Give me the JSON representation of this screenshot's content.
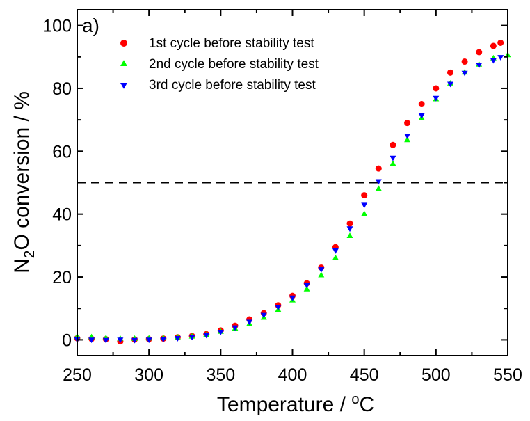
{
  "chart_data": {
    "type": "scatter",
    "panel_label": "a)",
    "xlabel": "Temperature / °C",
    "ylabel": "N2O conversion / %",
    "xlim": [
      250,
      550
    ],
    "ylim": [
      -5,
      105
    ],
    "x_ticks": [
      250,
      300,
      350,
      400,
      450,
      500,
      550
    ],
    "y_ticks": [
      0,
      20,
      40,
      60,
      80,
      100
    ],
    "grid": false,
    "legend_position": "top-left",
    "reference_line": {
      "y": 50,
      "style": "dashed"
    },
    "series": [
      {
        "name": "1st cycle before stability test",
        "color": "#ff0000",
        "marker": "circle",
        "x": [
          250,
          260,
          270,
          280,
          290,
          300,
          310,
          320,
          330,
          340,
          350,
          360,
          370,
          380,
          390,
          400,
          410,
          420,
          430,
          440,
          450,
          460,
          470,
          480,
          490,
          500,
          510,
          520,
          530,
          540,
          545
        ],
        "y": [
          0.5,
          0.3,
          0.2,
          -0.5,
          0.1,
          0.2,
          0.4,
          0.8,
          1.2,
          1.8,
          3.0,
          4.5,
          6.5,
          8.5,
          11.0,
          14.0,
          18.0,
          23.0,
          29.5,
          37.0,
          46.0,
          54.5,
          62.0,
          69.0,
          75.0,
          80.0,
          85.0,
          88.5,
          91.5,
          93.5,
          94.5
        ]
      },
      {
        "name": "2nd cycle before stability test",
        "color": "#00ff00",
        "marker": "triangle-up",
        "x": [
          250,
          260,
          270,
          280,
          290,
          300,
          310,
          320,
          330,
          340,
          350,
          360,
          370,
          380,
          390,
          400,
          410,
          420,
          430,
          440,
          450,
          460,
          470,
          480,
          490,
          500,
          510,
          520,
          530,
          540,
          550
        ],
        "y": [
          1.0,
          0.8,
          0.5,
          0.3,
          0.3,
          0.4,
          0.5,
          0.7,
          1.0,
          1.5,
          2.5,
          3.5,
          5.0,
          7.0,
          9.5,
          12.5,
          16.0,
          20.5,
          26.0,
          33.0,
          40.0,
          48.0,
          56.0,
          63.5,
          70.5,
          76.5,
          81.5,
          85.0,
          87.5,
          89.5,
          90.5
        ]
      },
      {
        "name": "3rd cycle before stability test",
        "color": "#0000ff",
        "marker": "triangle-down",
        "x": [
          250,
          260,
          270,
          280,
          290,
          300,
          310,
          320,
          330,
          340,
          350,
          360,
          370,
          380,
          390,
          400,
          410,
          420,
          430,
          440,
          450,
          460,
          470,
          480,
          490,
          500,
          510,
          520,
          530,
          540,
          545
        ],
        "y": [
          0.2,
          0.1,
          0.0,
          0.1,
          0.0,
          0.1,
          0.3,
          0.6,
          1.0,
          1.6,
          2.6,
          4.0,
          5.8,
          8.0,
          10.5,
          13.5,
          17.5,
          22.5,
          28.5,
          35.5,
          43.0,
          50.5,
          58.0,
          65.0,
          71.5,
          77.0,
          81.5,
          85.0,
          87.5,
          89.0,
          90.0
        ]
      }
    ]
  }
}
